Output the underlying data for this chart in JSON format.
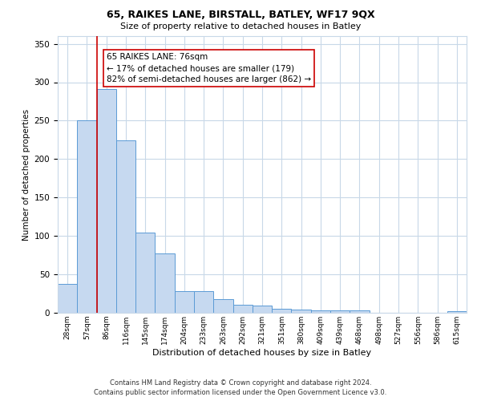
{
  "title": "65, RAIKES LANE, BIRSTALL, BATLEY, WF17 9QX",
  "subtitle": "Size of property relative to detached houses in Batley",
  "xlabel": "Distribution of detached houses by size in Batley",
  "ylabel": "Number of detached properties",
  "bar_labels": [
    "28sqm",
    "57sqm",
    "86sqm",
    "116sqm",
    "145sqm",
    "174sqm",
    "204sqm",
    "233sqm",
    "263sqm",
    "292sqm",
    "321sqm",
    "351sqm",
    "380sqm",
    "409sqm",
    "439sqm",
    "468sqm",
    "498sqm",
    "527sqm",
    "556sqm",
    "586sqm",
    "615sqm"
  ],
  "bar_values": [
    38,
    250,
    291,
    224,
    104,
    77,
    28,
    28,
    18,
    10,
    9,
    5,
    4,
    3,
    3,
    3,
    0,
    0,
    0,
    0,
    2
  ],
  "bar_color": "#c6d9f0",
  "bar_edge_color": "#5b9bd5",
  "vline_color": "#cc0000",
  "ylim": [
    0,
    360
  ],
  "yticks": [
    0,
    50,
    100,
    150,
    200,
    250,
    300,
    350
  ],
  "annotation_text": "65 RAIKES LANE: 76sqm\n← 17% of detached houses are smaller (179)\n82% of semi-detached houses are larger (862) →",
  "annotation_box_color": "#ffffff",
  "annotation_box_edge": "#cc0000",
  "footer_line1": "Contains HM Land Registry data © Crown copyright and database right 2024.",
  "footer_line2": "Contains public sector information licensed under the Open Government Licence v3.0.",
  "background_color": "#ffffff",
  "grid_color": "#c8d8e8"
}
